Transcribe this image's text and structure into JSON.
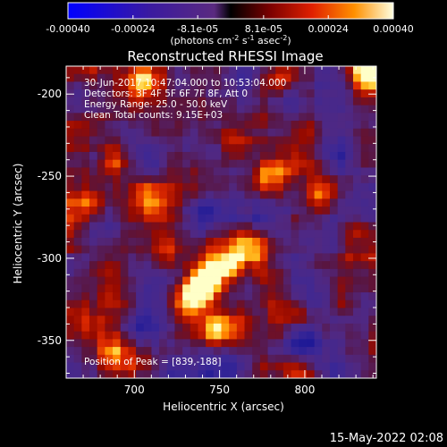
{
  "chart_data": {
    "type": "heatmap",
    "title": "Reconstructed RHESSI Image",
    "xlabel": "Heliocentric X (arcsec)",
    "ylabel": "Heliocentric Y (arcsec)",
    "xlim": [
      660,
      842
    ],
    "ylim": [
      -373,
      -183
    ],
    "x_ticks": [
      700,
      750,
      800
    ],
    "y_ticks": [
      -200,
      -250,
      -300,
      -350
    ],
    "colorbar": {
      "range": [
        -0.0004,
        0.0004
      ],
      "tick_labels": [
        "-0.00040",
        "-0.00024",
        "-8.1e-05",
        "8.1e-05",
        "0.00024",
        "0.00040"
      ],
      "tick_values": [
        -0.0004,
        -0.00024,
        -8.1e-05,
        8.1e-05,
        0.00024,
        0.0004
      ],
      "units_text": "(photons cm",
      "units_exp1": "-2",
      "units_mid": " s",
      "units_exp2": "-1",
      "units_end": " asec",
      "units_exp3": "-2",
      "units_close": ")"
    },
    "annotations": [
      "30-Jun-2017 10:47:04.000 to 10:53:04.000",
      "Detectors: 3F 4F 5F 6F 7F 8F, Att 0",
      "Energy Range: 25.0 - 50.0 keV",
      "Clean     Total counts: 9.15E+03"
    ],
    "peak_text": "Position of Peak = [839,-188]",
    "peak_position": [
      839,
      -188
    ],
    "hotspots": [
      {
        "x": 839,
        "y": -187,
        "v": 1.0
      },
      {
        "x": 740,
        "y": -315,
        "v": 0.95
      },
      {
        "x": 755,
        "y": -305,
        "v": 0.8
      },
      {
        "x": 748,
        "y": -342,
        "v": 0.75
      },
      {
        "x": 734,
        "y": -325,
        "v": 0.8
      },
      {
        "x": 718,
        "y": -297,
        "v": 0.6
      },
      {
        "x": 690,
        "y": -240,
        "v": 0.62
      },
      {
        "x": 672,
        "y": -268,
        "v": 0.6
      },
      {
        "x": 705,
        "y": -193,
        "v": 0.58
      },
      {
        "x": 768,
        "y": -292,
        "v": 0.55
      },
      {
        "x": 800,
        "y": -222,
        "v": 0.5
      },
      {
        "x": 808,
        "y": -262,
        "v": 0.55
      },
      {
        "x": 822,
        "y": -327,
        "v": 0.5
      },
      {
        "x": 830,
        "y": -282,
        "v": 0.5
      },
      {
        "x": 778,
        "y": -248,
        "v": 0.42
      },
      {
        "x": 668,
        "y": -337,
        "v": 0.55
      },
      {
        "x": 688,
        "y": -357,
        "v": 0.45
      },
      {
        "x": 798,
        "y": -367,
        "v": 0.35
      },
      {
        "x": 710,
        "y": -262,
        "v": 0.42
      },
      {
        "x": 782,
        "y": -192,
        "v": 0.4
      },
      {
        "x": 760,
        "y": -232,
        "v": 0.38
      },
      {
        "x": 785,
        "y": -340,
        "v": 0.35
      }
    ],
    "cold_spots": [
      {
        "x": 790,
        "y": -203,
        "v": -0.5
      },
      {
        "x": 800,
        "y": -350,
        "v": -0.55
      },
      {
        "x": 820,
        "y": -240,
        "v": -0.4
      },
      {
        "x": 705,
        "y": -345,
        "v": -0.35
      },
      {
        "x": 740,
        "y": -270,
        "v": -0.3
      },
      {
        "x": 760,
        "y": -365,
        "v": -0.35
      }
    ]
  },
  "footer_date": "15-May-2022 02:08"
}
